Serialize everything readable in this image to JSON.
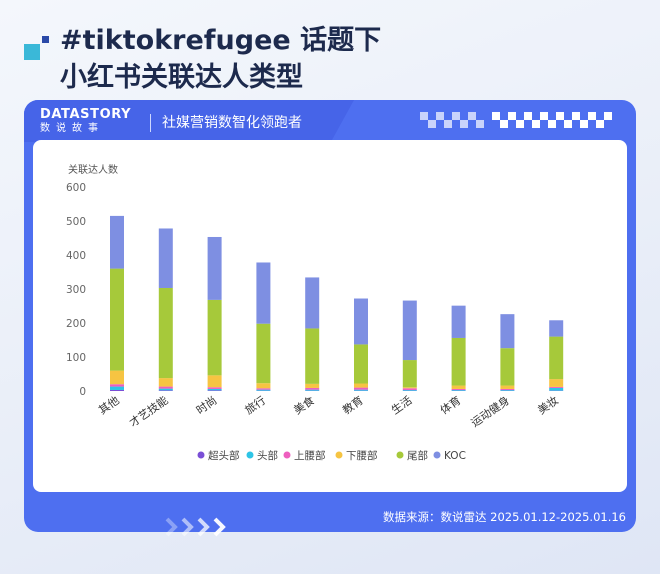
{
  "page": {
    "title_line1": "#tiktokrefugee 话题下",
    "title_line2": "小红书关联达人类型",
    "brand_name": "DATASTORY",
    "brand_sub": "数说故事",
    "slogan": "社媒营销数智化领跑者",
    "source": "数据来源：数说雷达 2025.01.12-2025.01.16"
  },
  "colors": {
    "frame": "#4e6ff0",
    "title": "#1d2a4d"
  },
  "chart_data": {
    "type": "bar",
    "stacked": true,
    "title": "",
    "xlabel": "",
    "ylabel": "关联达人数",
    "ylim": [
      0,
      600
    ],
    "yticks": [
      0,
      100,
      200,
      300,
      400,
      500,
      600
    ],
    "grid": false,
    "legend_position": "bottom",
    "categories": [
      "其他",
      "才艺技能",
      "时尚",
      "旅行",
      "美食",
      "教育",
      "生活",
      "体育",
      "运动健身",
      "美妆"
    ],
    "series": [
      {
        "name": "超头部",
        "color": "#7a4fd6",
        "values": [
          3,
          2,
          2,
          1,
          1,
          1,
          1,
          1,
          1,
          1
        ]
      },
      {
        "name": "头部",
        "color": "#2ec4e6",
        "values": [
          10,
          5,
          4,
          3,
          3,
          3,
          2,
          2,
          2,
          8
        ]
      },
      {
        "name": "上腰部",
        "color": "#ee5fbf",
        "values": [
          7,
          6,
          5,
          4,
          5,
          6,
          5,
          3,
          3,
          3
        ]
      },
      {
        "name": "下腰部",
        "color": "#f6c442",
        "values": [
          40,
          25,
          35,
          15,
          12,
          12,
          3,
          10,
          10,
          23
        ]
      },
      {
        "name": "尾部",
        "color": "#a6c93a",
        "values": [
          300,
          265,
          222,
          175,
          163,
          115,
          80,
          140,
          110,
          125
        ]
      },
      {
        "name": "KOC",
        "color": "#7e8fe2",
        "values": [
          155,
          175,
          185,
          180,
          150,
          135,
          175,
          95,
          100,
          48
        ]
      }
    ]
  }
}
